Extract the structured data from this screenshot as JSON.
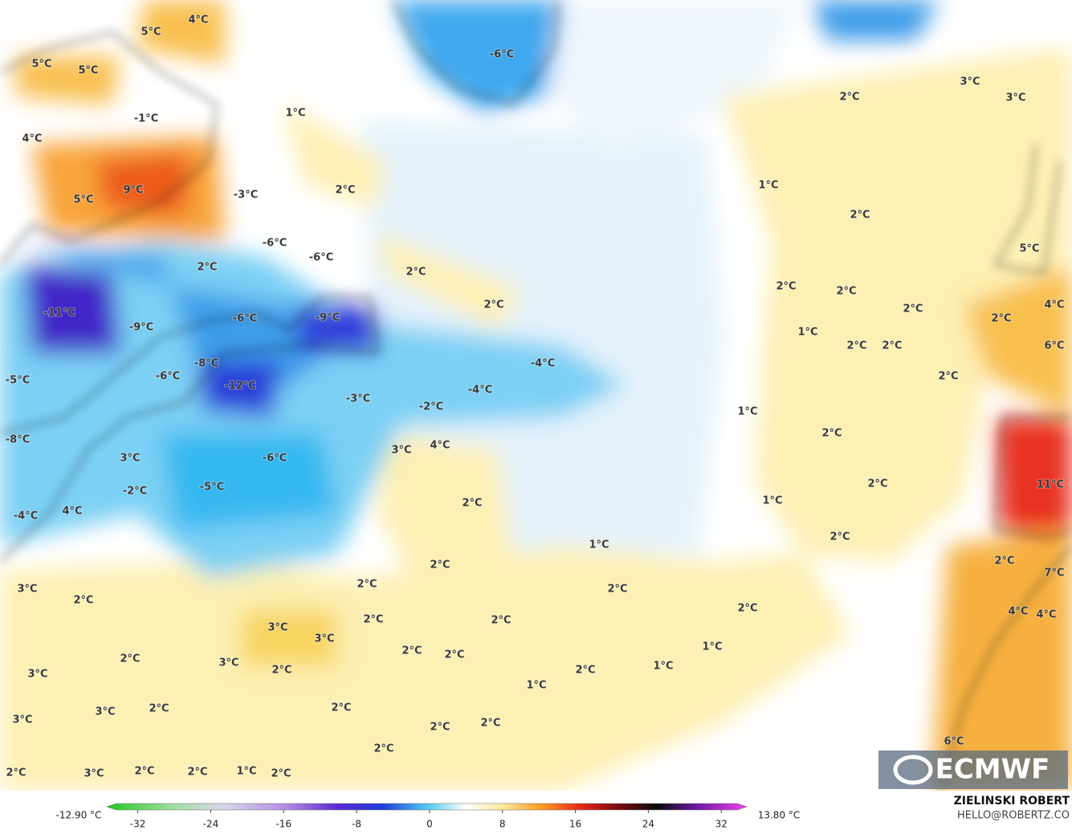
{
  "map": {
    "labels": [
      "4°C",
      "5°C",
      "5°C",
      "5°C",
      "1°C",
      "-1°C",
      "4°C",
      "9°C",
      "5°C",
      "-3°C",
      "2°C",
      "-6°C",
      "-6°C",
      "2°C",
      "2°C",
      "2°C",
      "-11°C",
      "-6°C",
      "-9°C",
      "-9°C",
      "-8°C",
      "-6°C",
      "-4°C",
      "-5°C",
      "-12°C",
      "-4°C",
      "-3°C",
      "-2°C",
      "-8°C",
      "3°C",
      "4°C",
      "3°C",
      "-6°C",
      "-2°C",
      "-5°C",
      "2°C",
      "-4°C",
      "4°C",
      "-6°C",
      "3°C",
      "2°C",
      "3°C",
      "1°C",
      "2°C",
      "5°C",
      "2°C",
      "2°C",
      "2°C",
      "4°C",
      "2°C",
      "1°C",
      "2°C",
      "2°C",
      "6°C",
      "2°C",
      "1°C",
      "2°C",
      "2°C",
      "11°C",
      "1°C",
      "2°C",
      "1°C",
      "2°C",
      "2°C",
      "7°C",
      "2°C",
      "2°C",
      "3°C",
      "2°C",
      "2°C",
      "4°C",
      "4°C",
      "2°C",
      "2°C",
      "3°C",
      "3°C",
      "1°C",
      "2°C",
      "2°C",
      "2°C",
      "3°C",
      "2°C",
      "3°C",
      "1°C",
      "2°C",
      "1°C",
      "3°C",
      "2°C",
      "2°C",
      "3°C",
      "2°C",
      "2°C",
      "6°C",
      "2°C",
      "2°C",
      "3°C",
      "2°C",
      "2°C",
      "1°C",
      "2°C"
    ]
  },
  "logo": "ECMWF",
  "colorbar": {
    "min_label": "-12.90 °C",
    "max_label": "13.80 °C",
    "lim": [
      -35.4,
      34.8
    ],
    "ticks": [
      -32,
      -24,
      -16,
      -8,
      0,
      8,
      16,
      24,
      32
    ]
  },
  "credit": {
    "name": "ZIELINSKI ROBERT",
    "email": "HELLO@ROBERTZ.CO"
  }
}
